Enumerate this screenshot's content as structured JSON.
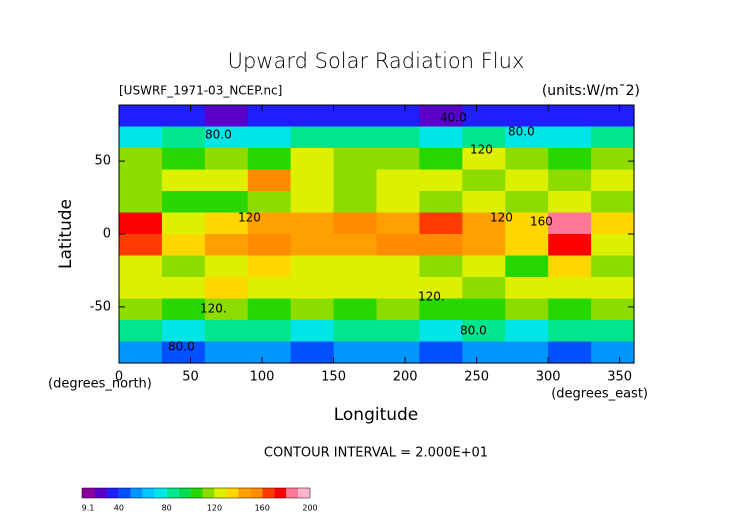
{
  "chart_data": {
    "type": "contour",
    "title": "Upward Solar Radiation Flux",
    "subtitle": "[USWRF_1971-03_NCEP.nc]",
    "units": "(units:W/m¯2)",
    "xlabel": "Longitude",
    "ylabel": "Latitude",
    "xunit": "(degrees_east)",
    "yunit": "(degrees_north)",
    "footnote": "CONTOUR INTERVAL = 2.000E+01",
    "xlim": [
      0,
      360
    ],
    "ylim": [
      -88.5,
      88.5
    ],
    "xticks": [
      0,
      50,
      100,
      150,
      200,
      250,
      300,
      350
    ],
    "yticks": [
      -50,
      0,
      50
    ],
    "contour_labels": [
      "40.0",
      "80.0",
      "80.0",
      "120",
      "120",
      "120",
      "160",
      "120.",
      "120.",
      "80.0",
      "80.0"
    ],
    "z": [
      [
        35,
        30,
        28,
        30,
        32,
        30,
        30,
        28,
        30,
        32,
        30,
        35
      ],
      [
        75,
        80,
        70,
        75,
        80,
        85,
        80,
        75,
        80,
        70,
        75,
        80
      ],
      [
        110,
        100,
        115,
        105,
        120,
        110,
        115,
        105,
        120,
        110,
        100,
        115
      ],
      [
        115,
        120,
        125,
        150,
        120,
        115,
        120,
        125,
        110,
        120,
        115,
        125
      ],
      [
        110,
        105,
        100,
        115,
        120,
        110,
        125,
        115,
        120,
        110,
        125,
        110
      ],
      [
        170,
        125,
        135,
        145,
        140,
        150,
        140,
        160,
        140,
        135,
        180,
        130
      ],
      [
        165,
        130,
        140,
        150,
        145,
        140,
        150,
        150,
        145,
        130,
        175,
        120
      ],
      [
        120,
        115,
        125,
        130,
        120,
        125,
        120,
        115,
        120,
        100,
        130,
        110
      ],
      [
        125,
        120,
        130,
        125,
        120,
        125,
        120,
        125,
        115,
        120,
        125,
        120
      ],
      [
        110,
        105,
        110,
        100,
        110,
        105,
        110,
        100,
        105,
        110,
        100,
        110
      ],
      [
        80,
        75,
        85,
        80,
        75,
        80,
        85,
        70,
        80,
        75,
        80,
        85
      ],
      [
        50,
        45,
        55,
        50,
        45,
        50,
        55,
        45,
        50,
        55,
        45,
        50
      ]
    ],
    "colorscale": [
      {
        "value": 9.1,
        "color": "#8a00a0"
      },
      {
        "value": 20,
        "color": "#5a00c8"
      },
      {
        "value": 30,
        "color": "#1e1eff"
      },
      {
        "value": 40,
        "color": "#0050ff"
      },
      {
        "value": 50,
        "color": "#0096ff"
      },
      {
        "value": 60,
        "color": "#00c8ff"
      },
      {
        "value": 70,
        "color": "#00e6e6"
      },
      {
        "value": 80,
        "color": "#00e68c"
      },
      {
        "value": 90,
        "color": "#00dc50"
      },
      {
        "value": 100,
        "color": "#28d700"
      },
      {
        "value": 110,
        "color": "#8cdc00"
      },
      {
        "value": 120,
        "color": "#dcf000"
      },
      {
        "value": 130,
        "color": "#ffd700"
      },
      {
        "value": 140,
        "color": "#ffa000"
      },
      {
        "value": 150,
        "color": "#ff8c00"
      },
      {
        "value": 160,
        "color": "#ff3c00"
      },
      {
        "value": 170,
        "color": "#ff0000"
      },
      {
        "value": 180,
        "color": "#ff7896"
      },
      {
        "value": 190,
        "color": "#ffb4c8"
      }
    ],
    "colorbar_range": [
      9.1,
      200
    ],
    "colorbar_ticks": [
      9.1,
      40,
      80,
      120,
      160,
      200
    ]
  }
}
